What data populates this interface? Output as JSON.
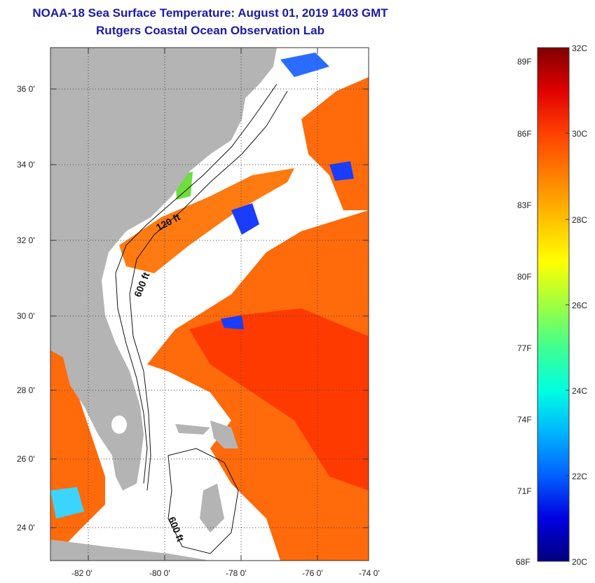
{
  "title": {
    "line1": "NOAA-18 Sea Surface Temperature:  August 01, 2019 1403 GMT",
    "line2": "Rutgers Coastal Ocean Observation Lab"
  },
  "map": {
    "lat_labels": [
      "36 0'",
      "34 0'",
      "32 0'",
      "30 0'",
      "28 0'",
      "26 0'",
      "24 0'"
    ],
    "lon_labels": [
      "-82 0'",
      "-80 0'",
      "-78 0'",
      "-76 0'",
      "-74 0'"
    ],
    "contour_labels": [
      "120 ft",
      "600 ft",
      "600 ft"
    ]
  },
  "colorbar": {
    "celsius_labels": [
      "32C",
      "30C",
      "28C",
      "26C",
      "24C",
      "22C",
      "20C"
    ],
    "fahrenheit_labels": [
      "89F",
      "86F",
      "83F",
      "80F",
      "77F",
      "74F",
      "71F",
      "68F"
    ],
    "colors": [
      "#00007f",
      "#0000e0",
      "#0060ff",
      "#00b4ff",
      "#00ffe0",
      "#40ff90",
      "#a0ff40",
      "#ffff00",
      "#ffc000",
      "#ff8000",
      "#ff4000",
      "#e00000",
      "#7f0000"
    ]
  },
  "colors": {
    "land": "#b4b4b4",
    "warm_water": "#ff6a0a",
    "hot_water": "#ff3a00",
    "cool_water": "#1a3cff",
    "cloud": "#ffffff",
    "title": "#1a1aa6"
  }
}
